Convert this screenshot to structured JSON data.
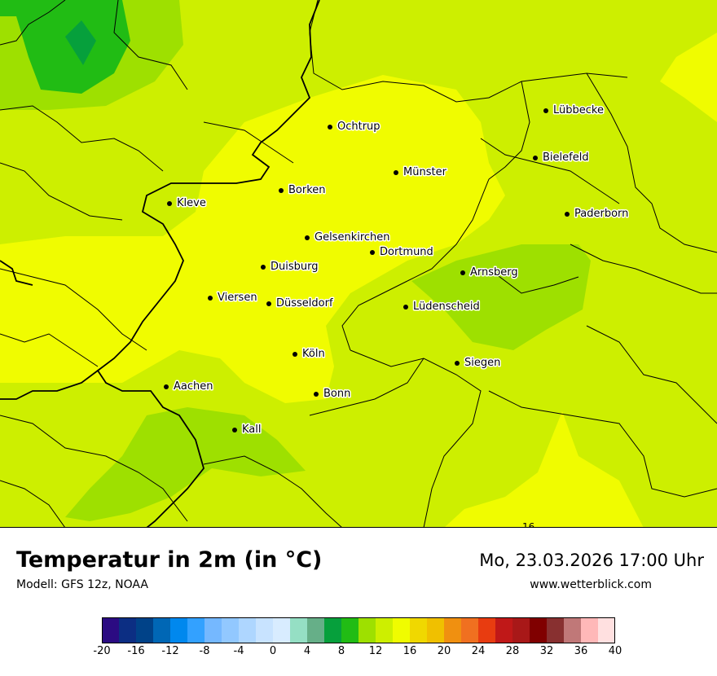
{
  "map": {
    "cities": [
      {
        "name": "Lübbecke"
      },
      {
        "name": "Ochtrup"
      },
      {
        "name": "Bielefeld"
      },
      {
        "name": "Münster"
      },
      {
        "name": "Borken"
      },
      {
        "name": "Kleve"
      },
      {
        "name": "Paderborn"
      },
      {
        "name": "Gelsenkirchen"
      },
      {
        "name": "Dortmund"
      },
      {
        "name": "Duisburg"
      },
      {
        "name": "Arnsberg"
      },
      {
        "name": "Viersen"
      },
      {
        "name": "Düsseldorf"
      },
      {
        "name": "Lüdenscheid"
      },
      {
        "name": "Köln"
      },
      {
        "name": "Siegen"
      },
      {
        "name": "Aachen"
      },
      {
        "name": "Bonn"
      },
      {
        "name": "Kall"
      }
    ],
    "contour_label": "16",
    "colors": {
      "t12_14": "#cdef00",
      "t14_16": "#f0fc00",
      "t10_12": "#9ee000",
      "t8_10": "#21bc14",
      "t6_8": "#06a03c"
    }
  },
  "footer": {
    "title": "Temperatur in 2m (in °C)",
    "model": "Modell: GFS 12z, NOAA",
    "datetime": "Mo, 23.03.2026 17:00 Uhr",
    "website": "www.wetterblick.com"
  },
  "legend": {
    "ticks": [
      "-20",
      "-16",
      "-12",
      "-8",
      "-4",
      "0",
      "4",
      "8",
      "12",
      "16",
      "20",
      "24",
      "28",
      "32",
      "36",
      "40"
    ],
    "colors": [
      "#2b0b82",
      "#0c2e83",
      "#004288",
      "#0067b5",
      "#0088ee",
      "#33a1ff",
      "#75b8ff",
      "#92c8ff",
      "#aed6ff",
      "#c8e3ff",
      "#d8ecff",
      "#95dfc4",
      "#66af88",
      "#06a03c",
      "#21bc14",
      "#9ee000",
      "#cdef00",
      "#f0fc00",
      "#f0d800",
      "#f0c000",
      "#f09010",
      "#f07020",
      "#e83c10",
      "#c01818",
      "#a81818",
      "#800000",
      "#883030",
      "#c07878",
      "#ffb8b8",
      "#ffe0e0"
    ]
  }
}
